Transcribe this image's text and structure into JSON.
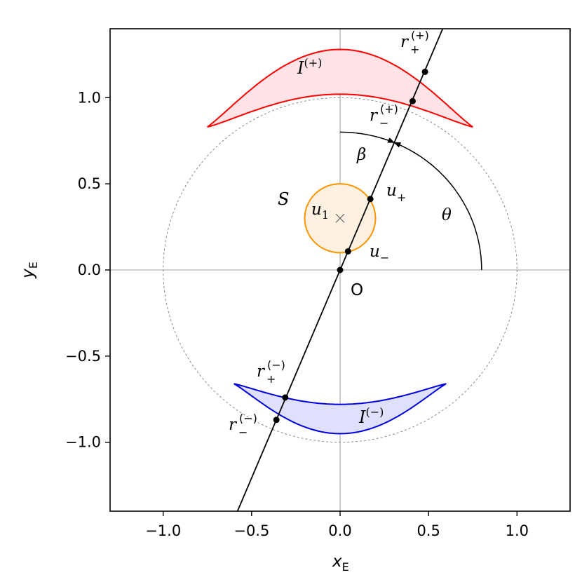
{
  "axes": {
    "xlabel": "x",
    "xlabel_sub": "E",
    "ylabel": "y",
    "ylabel_sub": "E",
    "xlim": [
      -1.3,
      1.3
    ],
    "ylim": [
      -1.4,
      1.4
    ],
    "xticks": [
      -1.0,
      -0.5,
      0.0,
      0.5,
      1.0
    ],
    "xtick_labels": [
      "−1.0",
      "−0.5",
      "0.0",
      "0.5",
      "1.0"
    ],
    "yticks": [
      -1.0,
      -0.5,
      0.0,
      0.5,
      1.0
    ],
    "ytick_labels": [
      "−1.0",
      "−0.5",
      "0.0",
      "0.5",
      "1.0"
    ]
  },
  "labels": {
    "origin": "O",
    "source_region": "S",
    "u1": "u",
    "u1_sub": "1",
    "u_plus": "u",
    "u_plus_sub": "+",
    "u_minus": "u",
    "u_minus_sub": "−",
    "beta": "β",
    "theta": "θ",
    "image_plus": "I",
    "image_plus_sup": "(+)",
    "image_minus": "I",
    "image_minus_sup": "(−)",
    "r_plus_plus": "r",
    "r_plus_plus_sub": "+",
    "r_plus_plus_sup": "(+)",
    "r_minus_plus": "r",
    "r_minus_plus_sub": "−",
    "r_minus_plus_sup": "(+)",
    "r_plus_minus": "r",
    "r_plus_minus_sub": "+",
    "r_plus_minus_sup": "(−)",
    "r_minus_minus": "r",
    "r_minus_minus_sub": "−",
    "r_minus_minus_sup": "(−)"
  },
  "geometry_data": {
    "einstein_ring_radius": 1.0,
    "source_center": [
      0.0,
      0.3
    ],
    "source_radius": 0.2,
    "line_angle_deg": 67.5,
    "theta_arc_radius": 0.8,
    "beta_arc_radius": 0.8,
    "points": {
      "origin": [
        0.0,
        0.0
      ],
      "u_minus": [
        0.045,
        0.108
      ],
      "u_plus": [
        0.171,
        0.412
      ],
      "r_minus_plus": [
        0.41,
        0.98
      ],
      "r_plus_plus": [
        0.48,
        1.15
      ],
      "r_plus_minus": [
        -0.31,
        -0.74
      ],
      "r_minus_minus": [
        -0.36,
        -0.87
      ]
    }
  },
  "colors": {
    "image_plus_stroke": "#ff0000",
    "image_plus_fill": "#ffe3e6",
    "image_minus_stroke": "#0000dd",
    "image_minus_fill": "#dfe0fb",
    "source_stroke": "#ff9500",
    "source_fill": "#fff1e1",
    "ring_stroke": "#7f7f7f",
    "axis_line": "#808080"
  }
}
